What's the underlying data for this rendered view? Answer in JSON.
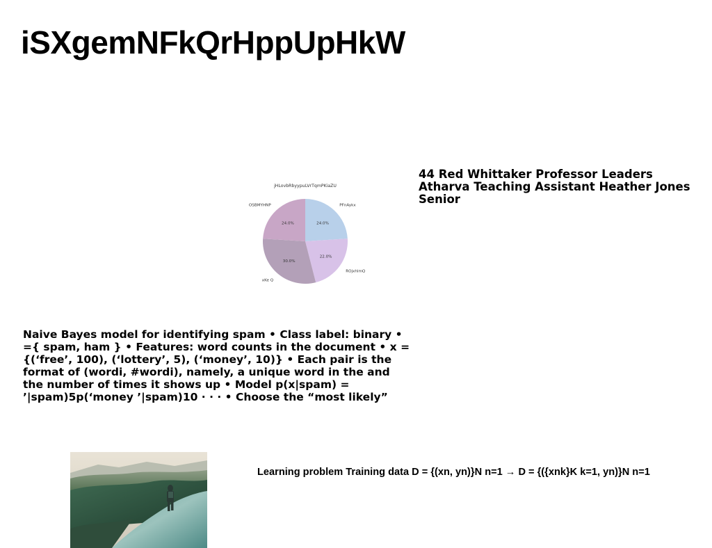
{
  "page": {
    "title": "iSXgemNFkQrHppUpHkW",
    "people_text": "44 Red Whittaker Professor Leaders Atharva Teaching Assistant Heather Jones Senior",
    "body_text": "Naive Bayes model for identifying spam • Class label: binary • ={ spam, ham } • Features: word counts in the document • x = {(‘free’, 100), (‘lottery’, 5), (‘money’, 10)} • Each pair is the format of (wordi, #wordi), namely, a unique word in the and the number of times it shows up • Model p(x|spam) = ’|spam)5p(‘money ’|spam)10 · · · • Choose the “most likely”",
    "learning_text": "Learning problem Training data D = {(xn, yn)}N n=1 → D = {({xnk}K k=1, yn)}N n=1",
    "photo_alt": "hiker on mountain trail"
  },
  "chart_data": {
    "type": "pie",
    "title": "jHLovbRbyypuLVrTqmPKiaZU",
    "series": [
      {
        "labels": [
          "PFnAykx",
          "ROjxhlmQ",
          "xKe Q",
          "OSBMYHNP"
        ],
        "values": [
          24.0,
          22.0,
          30.0,
          24.0
        ],
        "value_labels": [
          "24.0%",
          "22.0%",
          "30.0%",
          "24.0%"
        ],
        "colors": [
          "#b8d0ea",
          "#d8c2e8",
          "#b3a0b8",
          "#c8a6c6"
        ]
      }
    ],
    "start_angle": "top, clockwise"
  }
}
